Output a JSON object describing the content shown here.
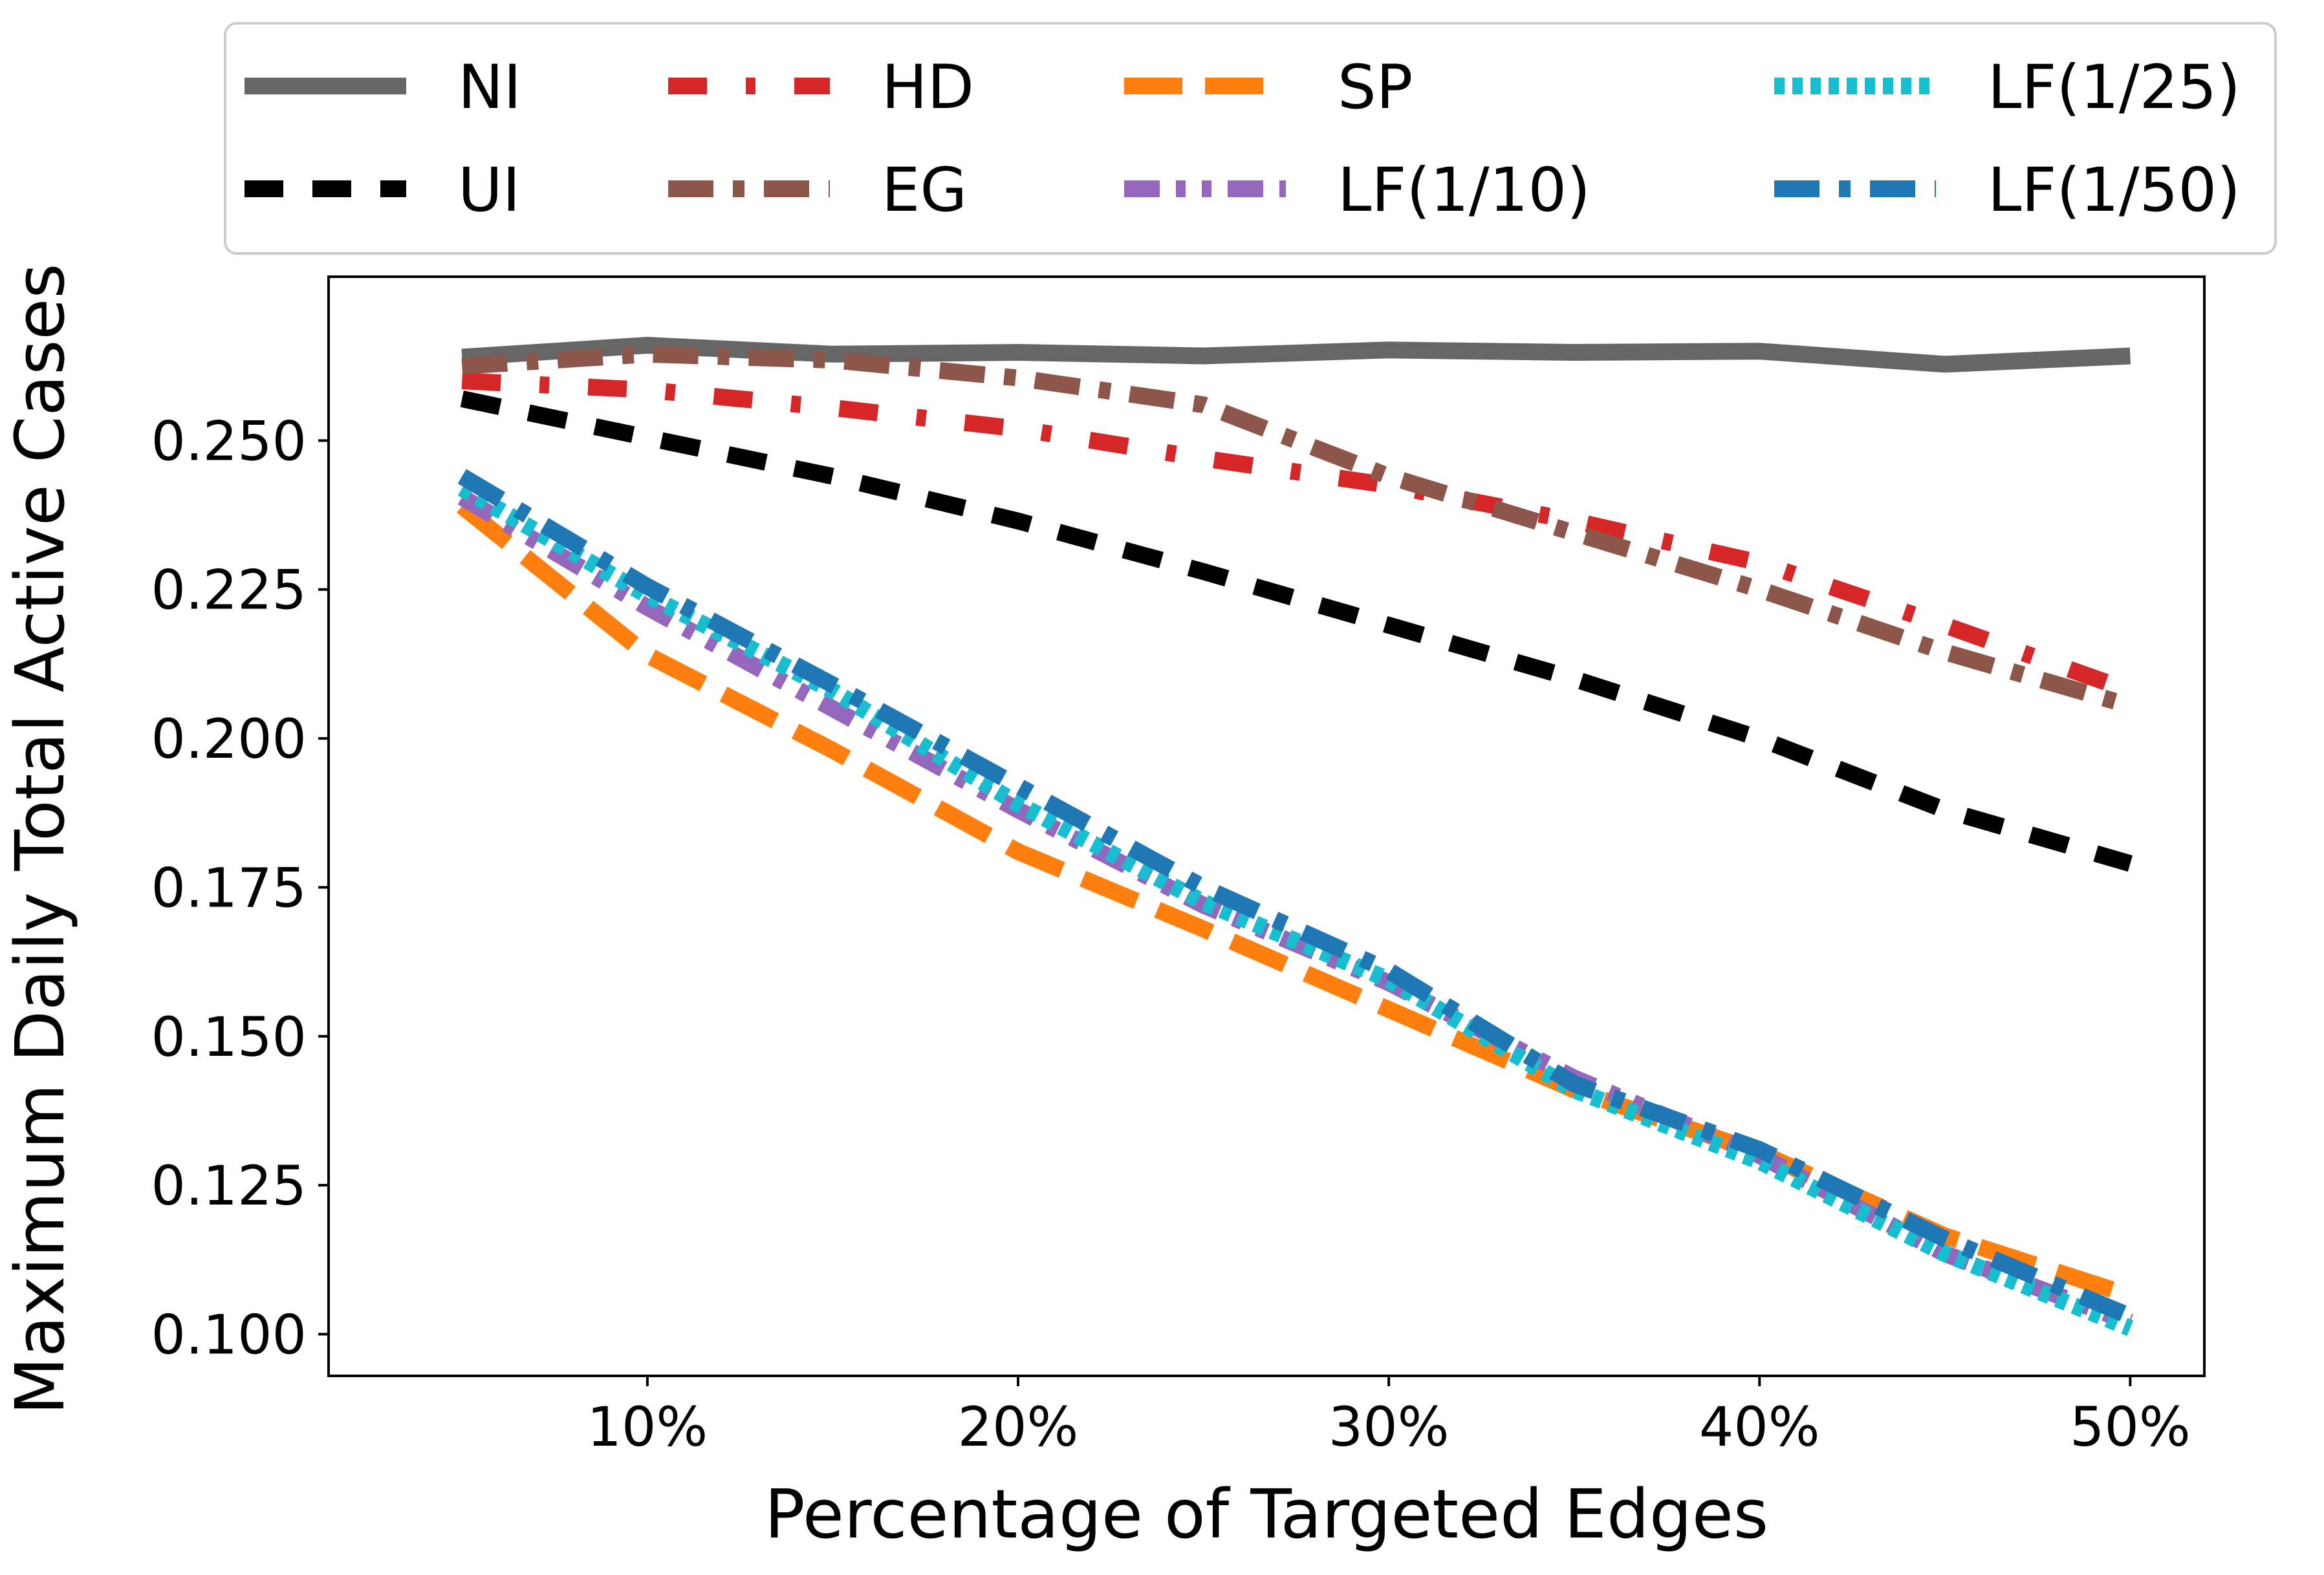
{
  "chart_data": {
    "type": "line",
    "xlabel": "Percentage of Targeted Edges",
    "ylabel": "Maximum Daily Total Active Cases",
    "x": [
      5,
      10,
      15,
      20,
      25,
      30,
      35,
      40,
      45,
      50
    ],
    "xlim": [
      1.4,
      52.0
    ],
    "ylim": [
      0.093,
      0.2775
    ],
    "xticks": [
      10,
      20,
      30,
      40,
      50
    ],
    "xtick_labels": [
      "10%",
      "20%",
      "30%",
      "40%",
      "50%"
    ],
    "yticks": [
      0.1,
      0.125,
      0.15,
      0.175,
      0.2,
      0.225,
      0.25
    ],
    "ytick_labels": [
      "0.100",
      "0.125",
      "0.150",
      "0.175",
      "0.200",
      "0.225",
      "0.250"
    ],
    "grid": false,
    "legend_position": "top, above plot, 4 columns",
    "series": [
      {
        "name": "NI",
        "color": "#666666",
        "dash": "solid",
        "values": [
          0.264,
          0.266,
          0.2645,
          0.2648,
          0.2642,
          0.2652,
          0.2648,
          0.265,
          0.2628,
          0.2642
        ]
      },
      {
        "name": "UI",
        "color": "#000000",
        "dash": "dashed",
        "values": [
          0.257,
          0.2505,
          0.244,
          0.2365,
          0.228,
          0.219,
          0.21,
          0.2,
          0.188,
          0.179
        ]
      },
      {
        "name": "HD",
        "color": "#d62728",
        "dash": "dashdot-sparse",
        "values": [
          0.26,
          0.2585,
          0.2555,
          0.252,
          0.247,
          0.2425,
          0.2365,
          0.2295,
          0.219,
          0.208
        ]
      },
      {
        "name": "EG",
        "color": "#8c564b",
        "dash": "dashdot",
        "values": [
          0.2625,
          0.2645,
          0.2635,
          0.2605,
          0.256,
          0.244,
          0.2345,
          0.225,
          0.2145,
          0.2055
        ]
      },
      {
        "name": "SP",
        "color": "#ff7f0e",
        "dash": "long-dash",
        "values": [
          0.239,
          0.214,
          0.198,
          0.181,
          0.168,
          0.1545,
          0.141,
          0.1305,
          0.1165,
          0.1065
        ]
      },
      {
        "name": "LF(1/10)",
        "color": "#9467bd",
        "dash": "dashdotdot",
        "values": [
          0.2405,
          0.222,
          0.205,
          0.188,
          0.172,
          0.159,
          0.143,
          0.13,
          0.1135,
          0.102
        ]
      },
      {
        "name": "LF(1/25)",
        "color": "#17becf",
        "dash": "dotted",
        "values": [
          0.242,
          0.224,
          0.208,
          0.189,
          0.1725,
          0.1595,
          0.141,
          0.129,
          0.1135,
          0.101
        ]
      },
      {
        "name": "LF(1/50)",
        "color": "#1f77b4",
        "dash": "dashdot",
        "values": [
          0.244,
          0.2255,
          0.209,
          0.192,
          0.175,
          0.161,
          0.142,
          0.131,
          0.116,
          0.103
        ]
      }
    ]
  }
}
